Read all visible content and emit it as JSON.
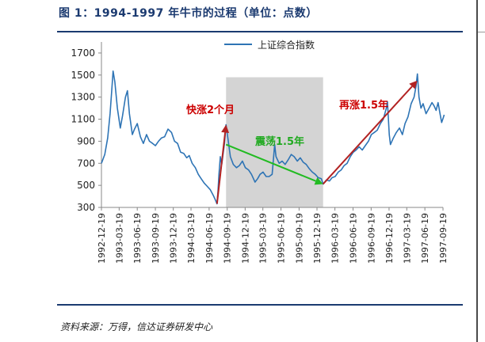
{
  "header": {
    "title": "图 1：1994-1997 年牛市的过程（单位：点数）"
  },
  "footer": {
    "source": "资料来源：万得，信达证券研发中心"
  },
  "colors": {
    "series": "#2e74b5",
    "shade": "#d4d4d4",
    "up_arrow": "#b22222",
    "down_arrow": "#22bb22",
    "axis": "#888888",
    "title": "#1b3a70"
  },
  "chart_data": {
    "type": "line",
    "title": "",
    "xlabel": "",
    "ylabel": "",
    "ylim": [
      300,
      1800
    ],
    "yticks": [
      300,
      500,
      700,
      900,
      1100,
      1300,
      1500,
      1700
    ],
    "xlim": [
      "1992-12-19",
      "1997-09-19"
    ],
    "xticks": [
      "1992-12-19",
      "1993-03-19",
      "1993-06-19",
      "1993-09-19",
      "1993-12-19",
      "1994-03-19",
      "1994-06-19",
      "1994-09-19",
      "1994-12-19",
      "1995-03-19",
      "1995-06-19",
      "1995-09-19",
      "1995-12-19",
      "1996-03-19",
      "1996-06-19",
      "1996-09-19",
      "1996-12-19",
      "1997-03-19",
      "1997-06-19",
      "1997-09-19"
    ],
    "legend": {
      "position": "top-right"
    },
    "series": [
      {
        "name": "上证综合指数",
        "points": [
          [
            "1992-12-19",
            700
          ],
          [
            "1993-01-05",
            780
          ],
          [
            "1993-01-20",
            930
          ],
          [
            "1993-02-01",
            1150
          ],
          [
            "1993-02-10",
            1380
          ],
          [
            "1993-02-16",
            1536
          ],
          [
            "1993-02-25",
            1440
          ],
          [
            "1993-03-10",
            1200
          ],
          [
            "1993-03-25",
            1020
          ],
          [
            "1993-04-05",
            1130
          ],
          [
            "1993-04-20",
            1300
          ],
          [
            "1993-04-30",
            1358
          ],
          [
            "1993-05-10",
            1150
          ],
          [
            "1993-05-25",
            960
          ],
          [
            "1993-06-05",
            1010
          ],
          [
            "1993-06-19",
            1060
          ],
          [
            "1993-07-05",
            940
          ],
          [
            "1993-07-20",
            880
          ],
          [
            "1993-08-05",
            960
          ],
          [
            "1993-08-20",
            900
          ],
          [
            "1993-09-05",
            880
          ],
          [
            "1993-09-19",
            860
          ],
          [
            "1993-10-05",
            900
          ],
          [
            "1993-10-20",
            930
          ],
          [
            "1993-11-05",
            940
          ],
          [
            "1993-11-22",
            1010
          ],
          [
            "1993-12-10",
            980
          ],
          [
            "1993-12-25",
            900
          ],
          [
            "1994-01-10",
            880
          ],
          [
            "1994-01-25",
            800
          ],
          [
            "1994-02-10",
            790
          ],
          [
            "1994-02-25",
            750
          ],
          [
            "1994-03-10",
            770
          ],
          [
            "1994-03-25",
            700
          ],
          [
            "1994-04-10",
            660
          ],
          [
            "1994-04-25",
            600
          ],
          [
            "1994-05-10",
            560
          ],
          [
            "1994-05-25",
            520
          ],
          [
            "1994-06-10",
            490
          ],
          [
            "1994-06-25",
            460
          ],
          [
            "1994-07-10",
            410
          ],
          [
            "1994-07-20",
            370
          ],
          [
            "1994-07-29",
            333
          ],
          [
            "1994-08-03",
            450
          ],
          [
            "1994-08-08",
            600
          ],
          [
            "1994-08-15",
            760
          ],
          [
            "1994-08-22",
            690
          ],
          [
            "1994-09-05",
            880
          ],
          [
            "1994-09-13",
            1050
          ],
          [
            "1994-09-22",
            930
          ],
          [
            "1994-10-05",
            760
          ],
          [
            "1994-10-20",
            690
          ],
          [
            "1994-11-05",
            660
          ],
          [
            "1994-11-20",
            680
          ],
          [
            "1994-12-05",
            720
          ],
          [
            "1994-12-20",
            660
          ],
          [
            "1995-01-05",
            640
          ],
          [
            "1995-01-20",
            600
          ],
          [
            "1995-02-07",
            530
          ],
          [
            "1995-02-20",
            560
          ],
          [
            "1995-03-05",
            600
          ],
          [
            "1995-03-20",
            620
          ],
          [
            "1995-04-05",
            580
          ],
          [
            "1995-04-20",
            580
          ],
          [
            "1995-05-05",
            600
          ],
          [
            "1995-05-18",
            870
          ],
          [
            "1995-05-25",
            760
          ],
          [
            "1995-06-10",
            700
          ],
          [
            "1995-06-25",
            720
          ],
          [
            "1995-07-10",
            690
          ],
          [
            "1995-07-25",
            730
          ],
          [
            "1995-08-10",
            780
          ],
          [
            "1995-08-25",
            760
          ],
          [
            "1995-09-10",
            720
          ],
          [
            "1995-09-25",
            750
          ],
          [
            "1995-10-10",
            710
          ],
          [
            "1995-10-25",
            690
          ],
          [
            "1995-11-10",
            650
          ],
          [
            "1995-11-25",
            620
          ],
          [
            "1995-12-10",
            600
          ],
          [
            "1995-12-25",
            570
          ],
          [
            "1996-01-10",
            560
          ],
          [
            "1996-01-19",
            512
          ],
          [
            "1996-02-05",
            550
          ],
          [
            "1996-02-20",
            540
          ],
          [
            "1996-03-05",
            570
          ],
          [
            "1996-03-20",
            580
          ],
          [
            "1996-04-05",
            620
          ],
          [
            "1996-04-20",
            640
          ],
          [
            "1996-05-05",
            680
          ],
          [
            "1996-05-20",
            700
          ],
          [
            "1996-06-05",
            760
          ],
          [
            "1996-06-20",
            800
          ],
          [
            "1996-07-05",
            820
          ],
          [
            "1996-07-20",
            850
          ],
          [
            "1996-08-05",
            820
          ],
          [
            "1996-08-20",
            860
          ],
          [
            "1996-09-05",
            900
          ],
          [
            "1996-09-20",
            960
          ],
          [
            "1996-10-05",
            980
          ],
          [
            "1996-10-20",
            1000
          ],
          [
            "1996-11-05",
            1060
          ],
          [
            "1996-11-20",
            1100
          ],
          [
            "1996-12-05",
            1200
          ],
          [
            "1996-12-11",
            1258
          ],
          [
            "1996-12-20",
            960
          ],
          [
            "1996-12-26",
            870
          ],
          [
            "1997-01-10",
            930
          ],
          [
            "1997-01-25",
            980
          ],
          [
            "1997-02-10",
            1020
          ],
          [
            "1997-02-25",
            960
          ],
          [
            "1997-03-10",
            1060
          ],
          [
            "1997-03-25",
            1120
          ],
          [
            "1997-04-10",
            1240
          ],
          [
            "1997-04-25",
            1300
          ],
          [
            "1997-05-05",
            1400
          ],
          [
            "1997-05-12",
            1510
          ],
          [
            "1997-05-20",
            1300
          ],
          [
            "1997-05-30",
            1200
          ],
          [
            "1997-06-10",
            1240
          ],
          [
            "1997-06-25",
            1150
          ],
          [
            "1997-07-10",
            1200
          ],
          [
            "1997-07-25",
            1250
          ],
          [
            "1997-08-05",
            1220
          ],
          [
            "1997-08-15",
            1180
          ],
          [
            "1997-08-25",
            1250
          ],
          [
            "1997-09-05",
            1140
          ],
          [
            "1997-09-12",
            1070
          ],
          [
            "1997-09-20",
            1110
          ],
          [
            "1997-09-25",
            1140
          ]
        ]
      }
    ],
    "shaded_region": {
      "start": "1994-09-13",
      "end": "1996-01-19",
      "ymax": 1480
    },
    "annotations": [
      {
        "text": "快涨2个月",
        "color": "#cc0000"
      },
      {
        "text": "震荡1.5年",
        "color": "#22aa22"
      },
      {
        "text": "再涨1.5年",
        "color": "#cc0000"
      }
    ],
    "arrows": [
      {
        "from": [
          "1994-07-29",
          333
        ],
        "to": [
          "1994-09-13",
          1050
        ],
        "color": "#b22222"
      },
      {
        "from": [
          "1994-09-13",
          870
        ],
        "to": [
          "1996-01-19",
          512
        ],
        "color": "#22bb22"
      },
      {
        "from": [
          "1996-01-19",
          512
        ],
        "to": [
          "1997-05-12",
          1450
        ],
        "color": "#b22222"
      }
    ]
  }
}
